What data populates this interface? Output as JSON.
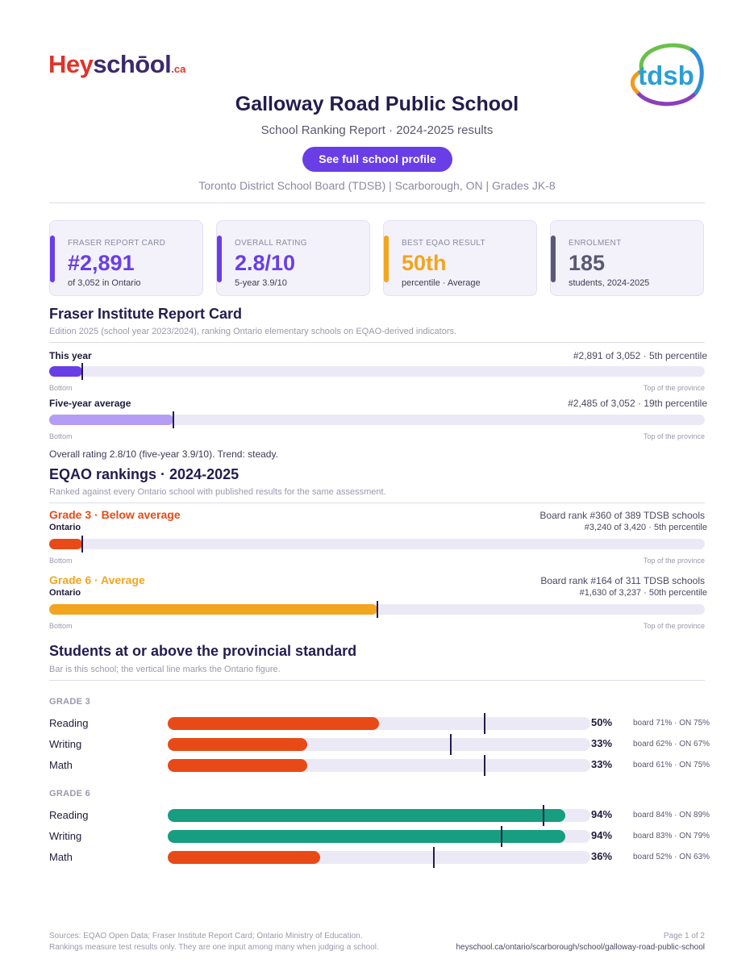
{
  "header": {
    "logo": {
      "hey": "Hey",
      "school": "schōol",
      "ca": ".ca"
    },
    "board_logo": "tdsb",
    "title": "Galloway Road Public School",
    "subtitle": "School Ranking Report  ·  2024-2025 results",
    "cta": "See full school profile",
    "meta": "Toronto District School Board (TDSB)  |  Scarborough, ON  |  Grades JK-8"
  },
  "cards": [
    {
      "label": "FRASER REPORT CARD",
      "value": "#2,891",
      "sub": "of 3,052 in Ontario",
      "color": "#6a3ee6"
    },
    {
      "label": "OVERALL RATING",
      "value": "2.8/10",
      "sub": "5-year 3.9/10",
      "color": "#6a3ee6"
    },
    {
      "label": "BEST EQAO RESULT",
      "value": "50th",
      "sub": "percentile  ·  Average",
      "color": "#f2a51f"
    },
    {
      "label": "ENROLMENT",
      "value": "185",
      "sub": "students, 2024-2025",
      "color": "#5a5875"
    }
  ],
  "fraser": {
    "title": "Fraser Institute Report Card",
    "note": "Edition 2025 (school year 2023/2024), ranking Ontario elementary schools on EQAO-derived indicators.",
    "rows": [
      {
        "label": "This year",
        "info": "#2,891 of 3,052  ·  5th percentile",
        "percentile": 5,
        "color": "#6a3ee6"
      },
      {
        "label": "Five-year average",
        "info": "#2,485 of 3,052  ·  19th percentile",
        "percentile": 19,
        "color": "#b59cf5"
      }
    ],
    "axis_left": "Bottom",
    "axis_right": "Top of the province",
    "summary": "Overall rating 2.8/10 (five-year 3.9/10). Trend: steady."
  },
  "eqao": {
    "title": "EQAO rankings  ·  2024-2025",
    "note": "Ranked against every Ontario school with published results for the same assessment.",
    "grades": [
      {
        "head": "Grade 3  ·  Below average",
        "board": "Board rank #360 of 389 TDSB schools",
        "scope": "Ontario",
        "info": "#3,240 of 3,420  ·  5th percentile",
        "percentile": 5,
        "color": "#e84a17"
      },
      {
        "head": "Grade 6  ·  Average",
        "board": "Board rank #164 of 311 TDSB schools",
        "scope": "Ontario",
        "info": "#1,630 of 3,237  ·  50th percentile",
        "percentile": 50,
        "color": "#f2a51f"
      }
    ],
    "axis_left": "Bottom",
    "axis_right": "Top of the province"
  },
  "standards": {
    "title": "Students at or above the provincial standard",
    "note": "Bar is this school; the vertical line marks the Ontario figure.",
    "groups": [
      {
        "label": "GRADE 3",
        "rows": [
          {
            "subject": "Reading",
            "pct": "50%",
            "value": 50,
            "ontario": 75,
            "cmp": "board 71%  ·  ON 75%",
            "color": "#e84a17"
          },
          {
            "subject": "Writing",
            "pct": "33%",
            "value": 33,
            "ontario": 67,
            "cmp": "board 62%  ·  ON 67%",
            "color": "#e84a17"
          },
          {
            "subject": "Math",
            "pct": "33%",
            "value": 33,
            "ontario": 75,
            "cmp": "board 61%  ·  ON 75%",
            "color": "#e84a17"
          }
        ]
      },
      {
        "label": "GRADE 6",
        "rows": [
          {
            "subject": "Reading",
            "pct": "94%",
            "value": 94,
            "ontario": 89,
            "cmp": "board 84%  ·  ON 89%",
            "color": "#179d80"
          },
          {
            "subject": "Writing",
            "pct": "94%",
            "value": 94,
            "ontario": 79,
            "cmp": "board 83%  ·  ON 79%",
            "color": "#179d80"
          },
          {
            "subject": "Math",
            "pct": "36%",
            "value": 36,
            "ontario": 63,
            "cmp": "board 52%  ·  ON 63%",
            "color": "#e84a17"
          }
        ]
      }
    ]
  },
  "footer": {
    "sources": "Sources: EQAO Open Data; Fraser Institute Report Card; Ontario Ministry of Education.",
    "disclaimer": "Rankings measure test results only. They are one input among many when judging a school.",
    "page": "Page 1 of 2",
    "url": "heyschool.ca/ontario/scarborough/school/galloway-road-public-school"
  }
}
